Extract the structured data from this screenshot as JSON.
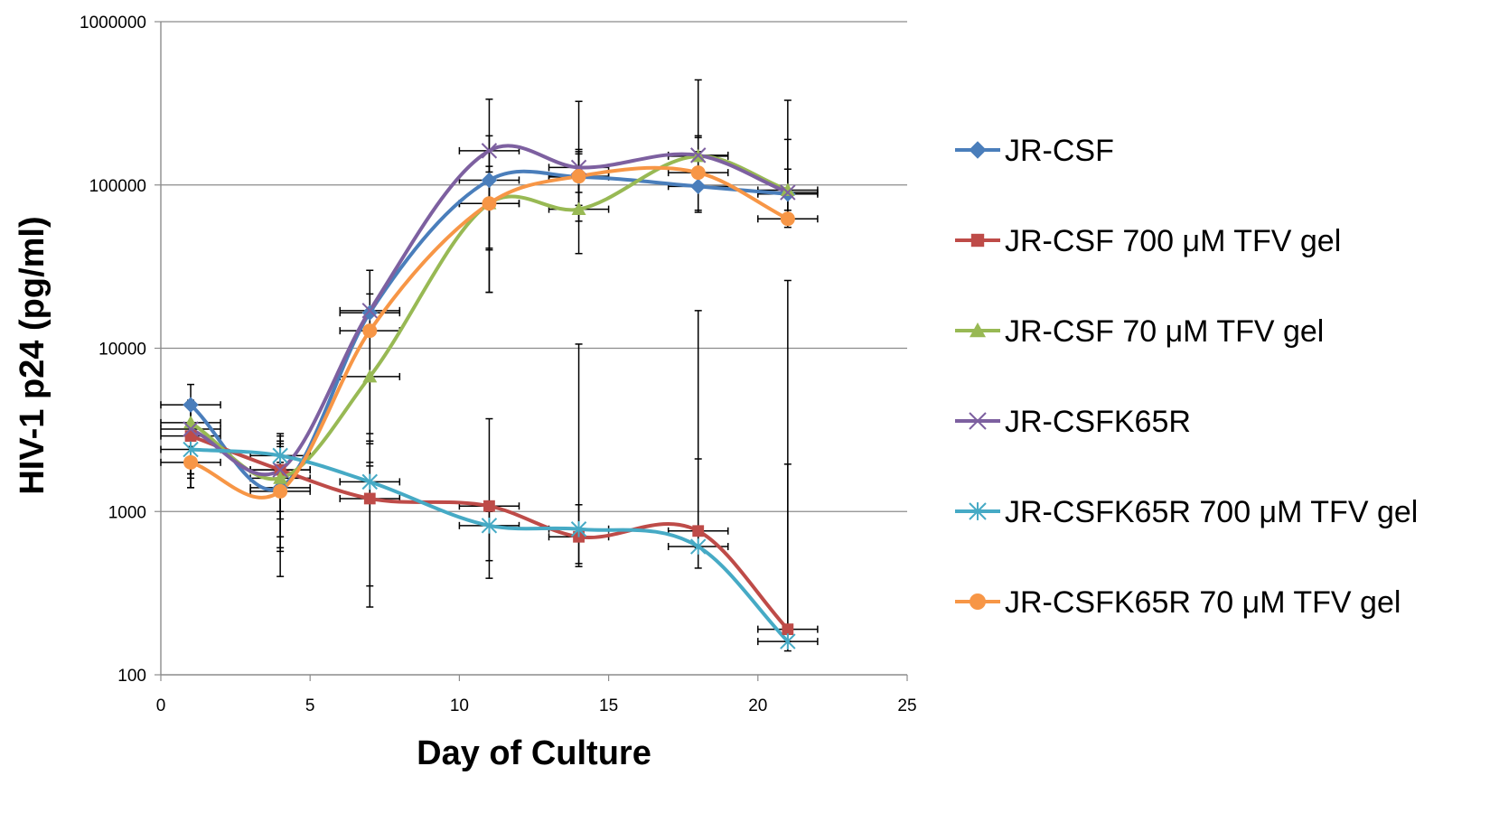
{
  "chart_data": {
    "type": "line",
    "xlabel": "Day of Culture",
    "ylabel": "HIV-1 p24 (pg/ml)",
    "xlim": [
      0,
      25
    ],
    "ylim": [
      100,
      1000000
    ],
    "yscale": "log",
    "x_ticks": [
      "0",
      "5",
      "10",
      "15",
      "20",
      "25"
    ],
    "y_ticks": [
      "100",
      "1000",
      "10000",
      "100000",
      "1000000"
    ],
    "grid": "horizontal",
    "legend_position": "right",
    "x": [
      1,
      4,
      7,
      11,
      14,
      18,
      21
    ],
    "series": [
      {
        "name": "JR-CSF",
        "color": "#4a7ebb",
        "marker": "diamond",
        "values": [
          4500,
          1400,
          16500,
          107000,
          112000,
          98000,
          88000
        ],
        "y_error_high": [
          6000,
          3000,
          21500,
          200000,
          160000,
          195000,
          125000
        ],
        "y_error_low": [
          1600,
          600,
          2700,
          22000,
          75000,
          68000,
          62000
        ],
        "x_error": [
          1,
          1,
          1,
          1,
          1,
          1,
          1
        ]
      },
      {
        "name": "JR-CSF 700 μM TFV gel",
        "color": "#be4b48",
        "marker": "square",
        "values": [
          2900,
          1800,
          1200,
          1080,
          700,
          760,
          190
        ],
        "y_error_high": [
          3400,
          2500,
          2700,
          3700,
          10600,
          17000,
          26000
        ],
        "y_error_low": [
          1400,
          400,
          260,
          390,
          460,
          600,
          160
        ],
        "x_error": [
          1,
          1,
          1,
          1,
          1,
          1,
          1
        ]
      },
      {
        "name": "JR-CSF 70 μM TFV gel",
        "color": "#98b954",
        "marker": "triangle",
        "values": [
          3500,
          1600,
          6700,
          77000,
          71000,
          150000,
          93000
        ],
        "y_error_high": [
          4800,
          2600,
          13000,
          130000,
          155000,
          200000,
          190000
        ],
        "y_error_low": [
          2100,
          900,
          2600,
          22000,
          38000,
          110000,
          70000
        ],
        "x_error": [
          1,
          1,
          1,
          1,
          1,
          1,
          1
        ]
      },
      {
        "name": "JR-CSFK65R",
        "color": "#7d60a0",
        "marker": "x",
        "values": [
          3200,
          1800,
          17000,
          162000,
          128000,
          152000,
          90000
        ],
        "y_error_high": [
          4500,
          2900,
          30000,
          335000,
          325000,
          440000,
          330000
        ],
        "y_error_low": [
          1700,
          700,
          3000,
          41000,
          60000,
          70000,
          60000
        ],
        "x_error": [
          1,
          1,
          1,
          1,
          1,
          1,
          1
        ]
      },
      {
        "name": "JR-CSFK65R 700 μM TFV gel",
        "color": "#46aac5",
        "marker": "asterisk",
        "values": [
          2400,
          2200,
          1520,
          820,
          780,
          610,
          160
        ],
        "y_error_high": [
          3000,
          2700,
          2000,
          1000,
          1100,
          2100,
          1950
        ],
        "y_error_low": [
          1700,
          1000,
          350,
          500,
          480,
          450,
          140
        ],
        "x_error": [
          1,
          1,
          1,
          1,
          1,
          1,
          1
        ]
      },
      {
        "name": "JR-CSFK65R 70 μM TFV gel",
        "color": "#f79646",
        "marker": "circle",
        "values": [
          2000,
          1330,
          12800,
          77000,
          113000,
          119000,
          62000
        ],
        "y_error_high": [
          2500,
          2000,
          17000,
          120000,
          165000,
          160000,
          85000
        ],
        "y_error_low": [
          1400,
          570,
          1900,
          40000,
          90000,
          95000,
          55000
        ],
        "x_error": [
          1,
          1,
          1,
          1,
          1,
          1,
          1
        ]
      }
    ]
  }
}
